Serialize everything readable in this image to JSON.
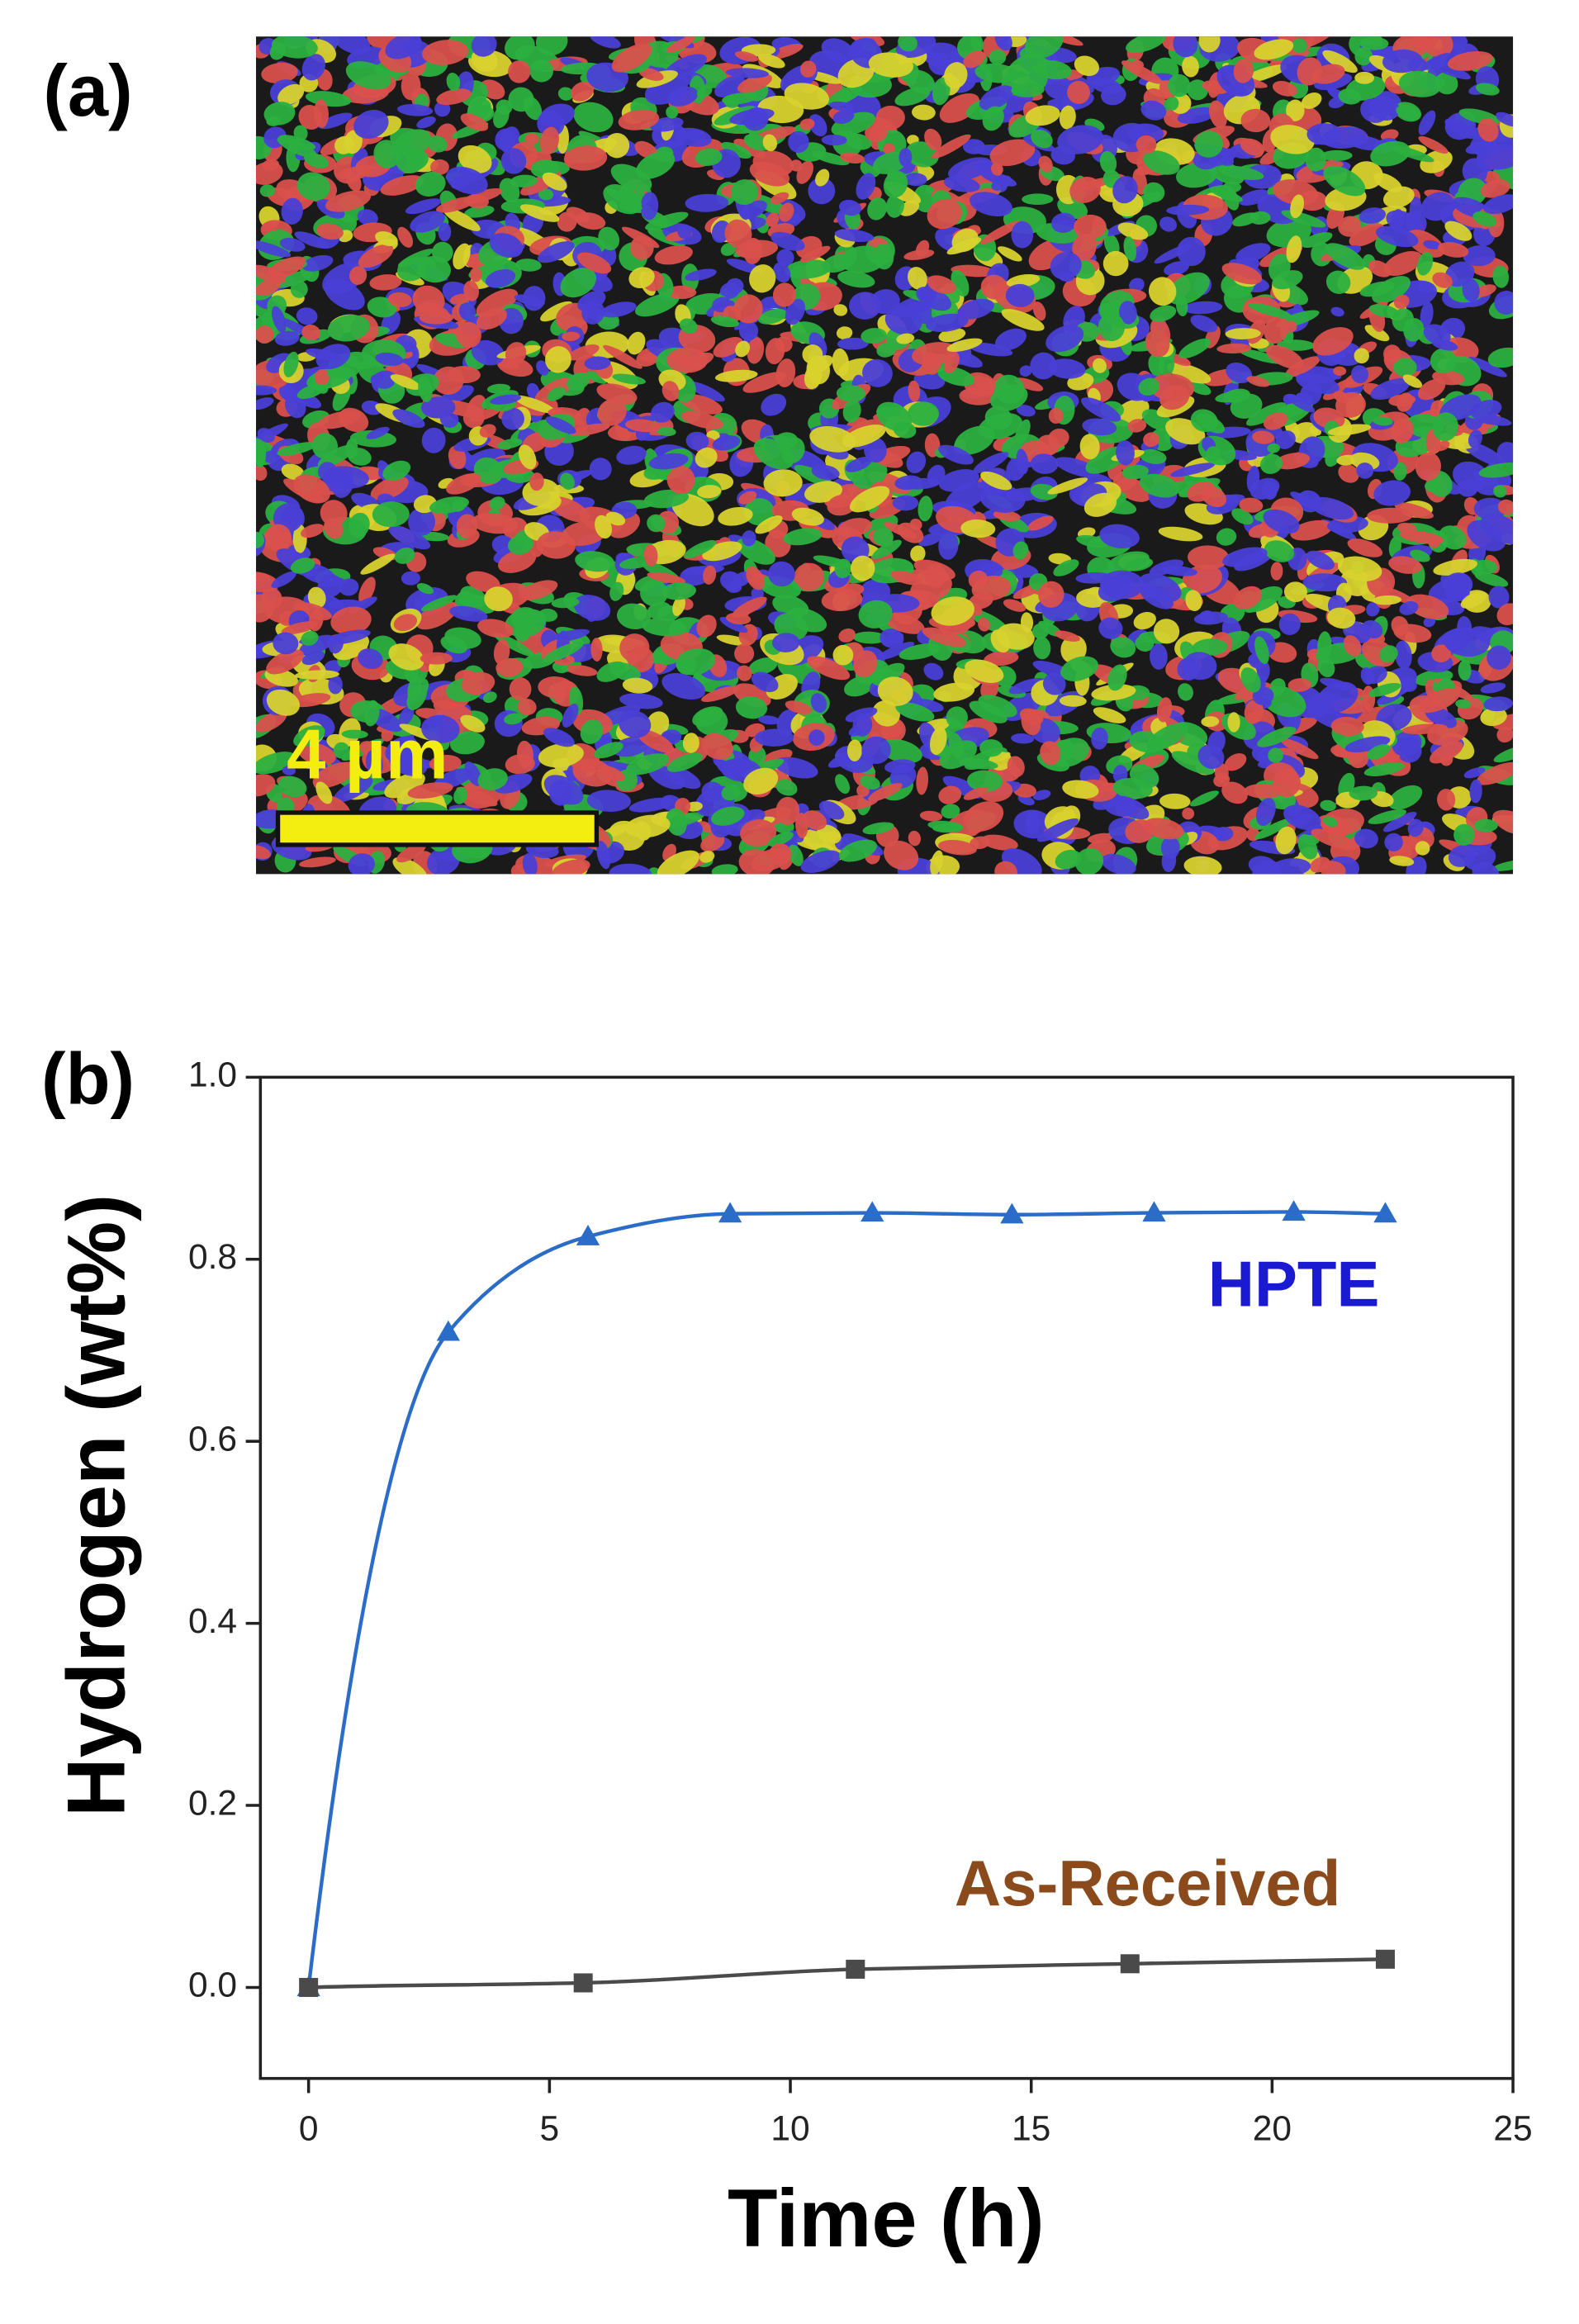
{
  "panel_a": {
    "label": "(a)",
    "scale_bar": "4 µm"
  },
  "chart_data": {
    "type": "line",
    "panel_label": "(b)",
    "xlabel": "Time (h)",
    "ylabel": "Hydrogen (wt%)",
    "xlim": [
      -1,
      25
    ],
    "xticks": [
      0,
      5,
      10,
      15,
      20,
      25
    ],
    "ylim": [
      -0.1,
      1.0
    ],
    "yticks": [
      {
        "value": 0,
        "label": "0.0"
      },
      {
        "value": 0.2,
        "label": "0.2"
      },
      {
        "value": 0.4,
        "label": "0.4"
      },
      {
        "value": 0.6,
        "label": "0.6"
      },
      {
        "value": 0.8,
        "label": "0.8"
      },
      {
        "value": 1.0,
        "label": "1.0"
      }
    ],
    "series": [
      {
        "name": "HPTE",
        "color": "#2a6cc8",
        "marker": "triangle",
        "x": [
          0,
          2.9,
          5.8,
          8.75,
          11.7,
          14.6,
          17.55,
          20.45,
          22.35
        ],
        "values": [
          0,
          0.72,
          0.825,
          0.85,
          0.851,
          0.849,
          0.851,
          0.852,
          0.85
        ]
      },
      {
        "name": "As-Received",
        "color": "#4a4a4a",
        "marker": "square",
        "x": [
          0,
          5.7,
          11.35,
          17.05,
          22.35
        ],
        "values": [
          0,
          0.005,
          0.02,
          0.026,
          0.031
        ]
      }
    ],
    "annotations": [
      {
        "text": "HPTE",
        "color": "#1a1ad0"
      },
      {
        "text": "As-Received",
        "color": "#8a4a1c"
      }
    ]
  }
}
